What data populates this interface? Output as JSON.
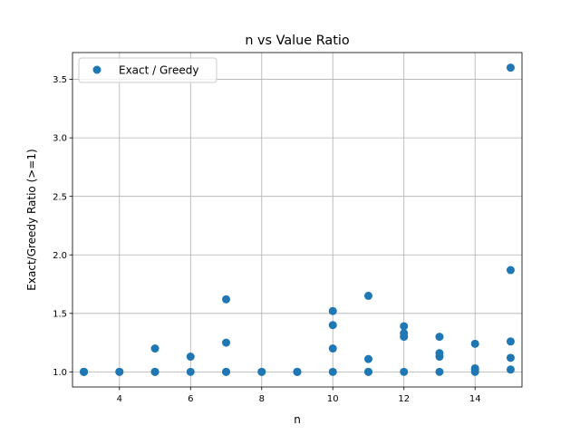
{
  "chart_data": {
    "type": "scatter",
    "title": "n vs Value Ratio",
    "xlabel": "n",
    "ylabel": "Exact/Greedy Ratio (>=1)",
    "xlim": [
      2.68,
      15.32
    ],
    "ylim": [
      0.871,
      3.729
    ],
    "xticks": [
      4,
      6,
      8,
      10,
      12,
      14
    ],
    "yticks": [
      1.0,
      1.5,
      2.0,
      2.5,
      3.0,
      3.5
    ],
    "grid": true,
    "legend_position": "top-left",
    "series": [
      {
        "name": "Exact / Greedy",
        "color": "#1f77b4",
        "points": [
          [
            3,
            1.0
          ],
          [
            3,
            1.0
          ],
          [
            3,
            1.0
          ],
          [
            4,
            1.0
          ],
          [
            4,
            1.0
          ],
          [
            5,
            1.0
          ],
          [
            5,
            1.0
          ],
          [
            5,
            1.2
          ],
          [
            6,
            1.0
          ],
          [
            6,
            1.13
          ],
          [
            7,
            1.0
          ],
          [
            7,
            1.0
          ],
          [
            7,
            1.25
          ],
          [
            7,
            1.62
          ],
          [
            8,
            1.0
          ],
          [
            8,
            1.0
          ],
          [
            9,
            1.0
          ],
          [
            9,
            1.0
          ],
          [
            9,
            1.0
          ],
          [
            10,
            1.0
          ],
          [
            10,
            1.2
          ],
          [
            10,
            1.4
          ],
          [
            10,
            1.52
          ],
          [
            11,
            1.0
          ],
          [
            11,
            1.0
          ],
          [
            11,
            1.11
          ],
          [
            11,
            1.65
          ],
          [
            12,
            1.0
          ],
          [
            12,
            1.3
          ],
          [
            12,
            1.33
          ],
          [
            12,
            1.39
          ],
          [
            13,
            1.0
          ],
          [
            13,
            1.13
          ],
          [
            13,
            1.16
          ],
          [
            13,
            1.3
          ],
          [
            14,
            1.0
          ],
          [
            14,
            1.02
          ],
          [
            14,
            1.03
          ],
          [
            14,
            1.24
          ],
          [
            15,
            1.02
          ],
          [
            15,
            1.12
          ],
          [
            15,
            1.26
          ],
          [
            15,
            1.87
          ],
          [
            15,
            3.6
          ]
        ]
      }
    ]
  }
}
